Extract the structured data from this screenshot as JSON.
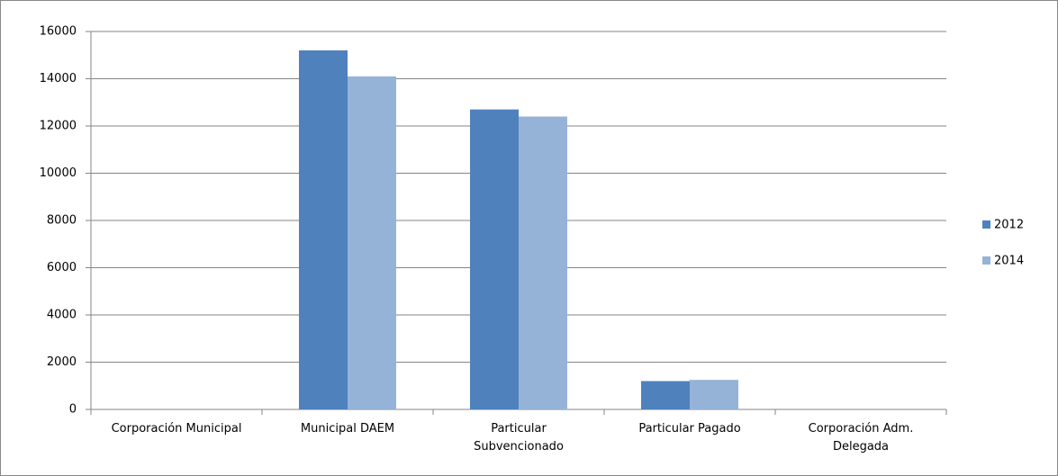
{
  "chart_data": {
    "type": "bar",
    "categories": [
      "Corporación Municipal",
      "Municipal DAEM",
      "Particular Subvencionado",
      "Particular Pagado",
      "Corporación Adm. Delegada"
    ],
    "series": [
      {
        "name": "2012",
        "color": "#4f81bd",
        "values": [
          0,
          15200,
          12700,
          1200,
          0
        ]
      },
      {
        "name": "2014",
        "color": "#95b3d7",
        "values": [
          0,
          14100,
          12400,
          1250,
          0
        ]
      }
    ],
    "ylim": [
      0,
      16000
    ],
    "yticks": [
      0,
      2000,
      4000,
      6000,
      8000,
      10000,
      12000,
      14000,
      16000
    ],
    "grid": true,
    "legend": "right"
  }
}
